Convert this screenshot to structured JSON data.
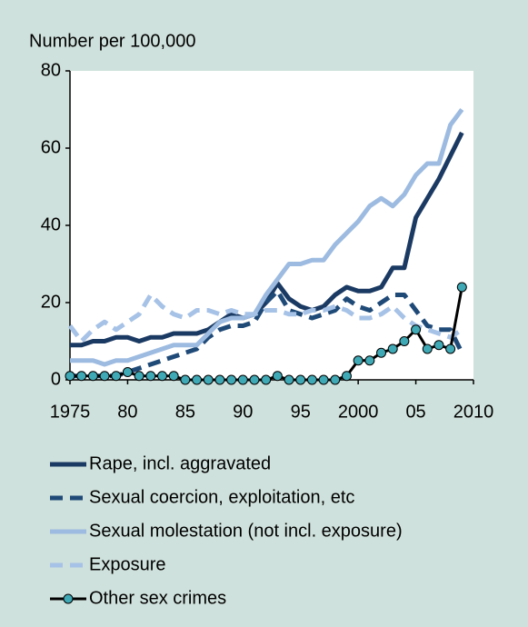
{
  "chart_data": {
    "type": "line",
    "y_label": "Number per 100,000",
    "x": [
      1975,
      1976,
      1977,
      1978,
      1979,
      1980,
      1981,
      1982,
      1983,
      1984,
      1985,
      1986,
      1987,
      1988,
      1989,
      1990,
      1991,
      1992,
      1993,
      1994,
      1995,
      1996,
      1997,
      1998,
      1999,
      2000,
      2001,
      2002,
      2003,
      2004,
      2005,
      2006,
      2007,
      2008,
      2009
    ],
    "xlim": [
      1975,
      2010
    ],
    "xticks": [
      1975,
      {
        "value": 1980,
        "label": "80"
      },
      {
        "value": 1985,
        "label": "85"
      },
      {
        "value": 1990,
        "label": "90"
      },
      {
        "value": 1995,
        "label": "95"
      },
      2000,
      {
        "value": 2005,
        "label": "05"
      },
      2010
    ],
    "ylim": [
      0,
      80
    ],
    "yticks": [
      0,
      20,
      40,
      60,
      80
    ],
    "grid": false,
    "legend": "bottom",
    "series": [
      {
        "name": "Rape, incl. aggravated",
        "color": "#1b3a63",
        "dashed": false,
        "values": [
          9,
          9,
          10,
          10,
          11,
          11,
          10,
          11,
          11,
          12,
          12,
          12,
          13,
          15,
          17,
          16,
          17,
          20,
          25,
          21,
          19,
          18,
          19,
          22,
          24,
          23,
          23,
          24,
          29,
          29,
          42,
          47,
          52,
          58,
          64
        ]
      },
      {
        "name": "Sexual coercion, exploitation, etc",
        "color": "#1f4a78",
        "dashed": true,
        "values": [
          1,
          1,
          1,
          1,
          1,
          2,
          3,
          4,
          5,
          6,
          7,
          8,
          11,
          13,
          14,
          14,
          15,
          20,
          23,
          18,
          17,
          16,
          17,
          18,
          21,
          19,
          18,
          20,
          22,
          22,
          18,
          14,
          13,
          13,
          7
        ]
      },
      {
        "name": "Sexual molestation (not incl. exposure)",
        "color": "#9dbbe0",
        "dashed": false,
        "values": [
          5,
          5,
          5,
          4,
          5,
          5,
          6,
          7,
          8,
          9,
          9,
          9,
          12,
          15,
          16,
          16,
          17,
          22,
          26,
          30,
          30,
          31,
          31,
          35,
          38,
          41,
          45,
          47,
          45,
          48,
          53,
          56,
          56,
          66,
          70
        ]
      },
      {
        "name": "Exposure",
        "color": "#a6c2e6",
        "dashed": true,
        "values": [
          14,
          10,
          13,
          15,
          13,
          15,
          17,
          22,
          19,
          17,
          16,
          18,
          18,
          17,
          18,
          17,
          17,
          18,
          18,
          17,
          17,
          18,
          18,
          19,
          18,
          16,
          16,
          17,
          19,
          16,
          14,
          13,
          12,
          11,
          13
        ]
      },
      {
        "name": "Other sex crimes",
        "color": "#000000",
        "dashed": false,
        "marker_color": "#3fa9b5",
        "values": [
          1,
          1,
          1,
          1,
          1,
          2,
          1,
          1,
          1,
          1,
          0,
          0,
          0,
          0,
          0,
          0,
          0,
          0,
          1,
          0,
          0,
          0,
          0,
          0,
          1,
          5,
          5,
          7,
          8,
          10,
          13,
          8,
          9,
          8,
          24
        ]
      }
    ]
  }
}
